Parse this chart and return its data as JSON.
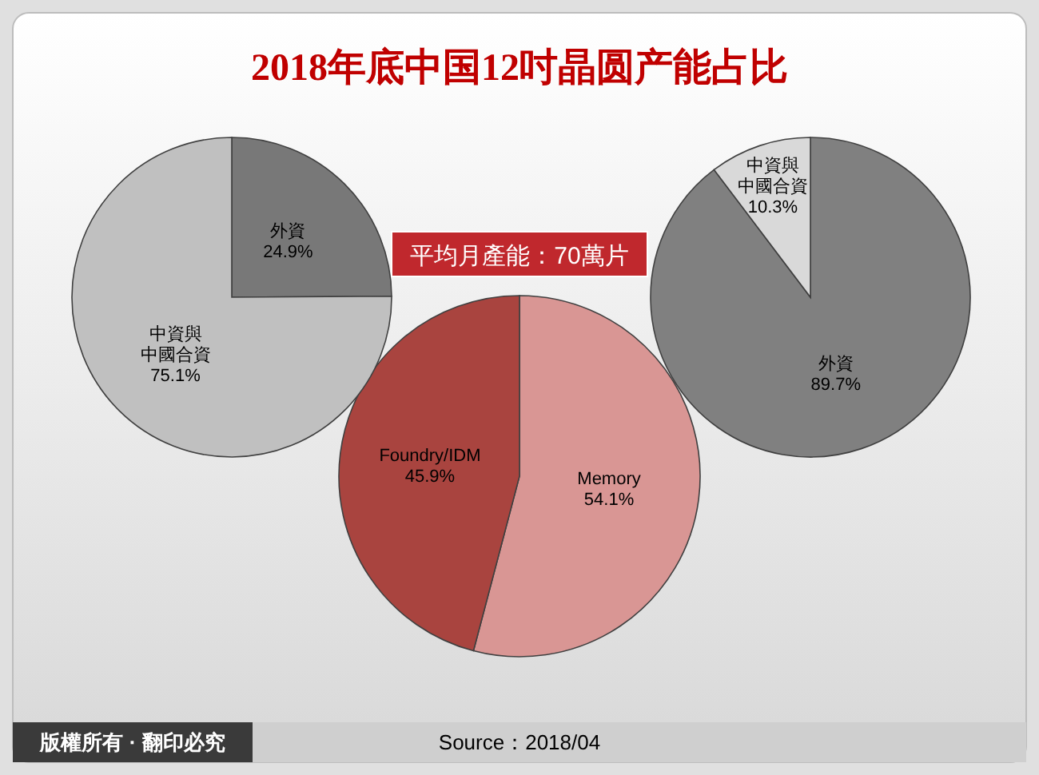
{
  "chart_data": [
    {
      "type": "pie",
      "title": "2018年底中国12吋晶圆产能占比",
      "subtitle": "平均月產能：70萬片",
      "categories": [
        "Memory",
        "Foundry/IDM"
      ],
      "values": [
        54.1,
        45.9
      ],
      "value_labels": [
        "54.1%",
        "45.9%"
      ],
      "colors": [
        "#d99694",
        "#a9443f"
      ],
      "annotations": [
        "版權所有 · 翻印必究",
        "Source：2018/04"
      ]
    },
    {
      "type": "pie",
      "categories": [
        "外資",
        "中資與中國合資"
      ],
      "values": [
        24.9,
        75.1
      ],
      "value_labels": [
        "24.9%",
        "75.1%"
      ],
      "colors": [
        "#787878",
        "#c0c0c0"
      ]
    },
    {
      "type": "pie",
      "categories": [
        "外資",
        "中資與中國合資"
      ],
      "values": [
        89.7,
        10.3
      ],
      "value_labels": [
        "89.7%",
        "10.3%"
      ],
      "colors": [
        "#808080",
        "#d9d9d9"
      ]
    }
  ]
}
